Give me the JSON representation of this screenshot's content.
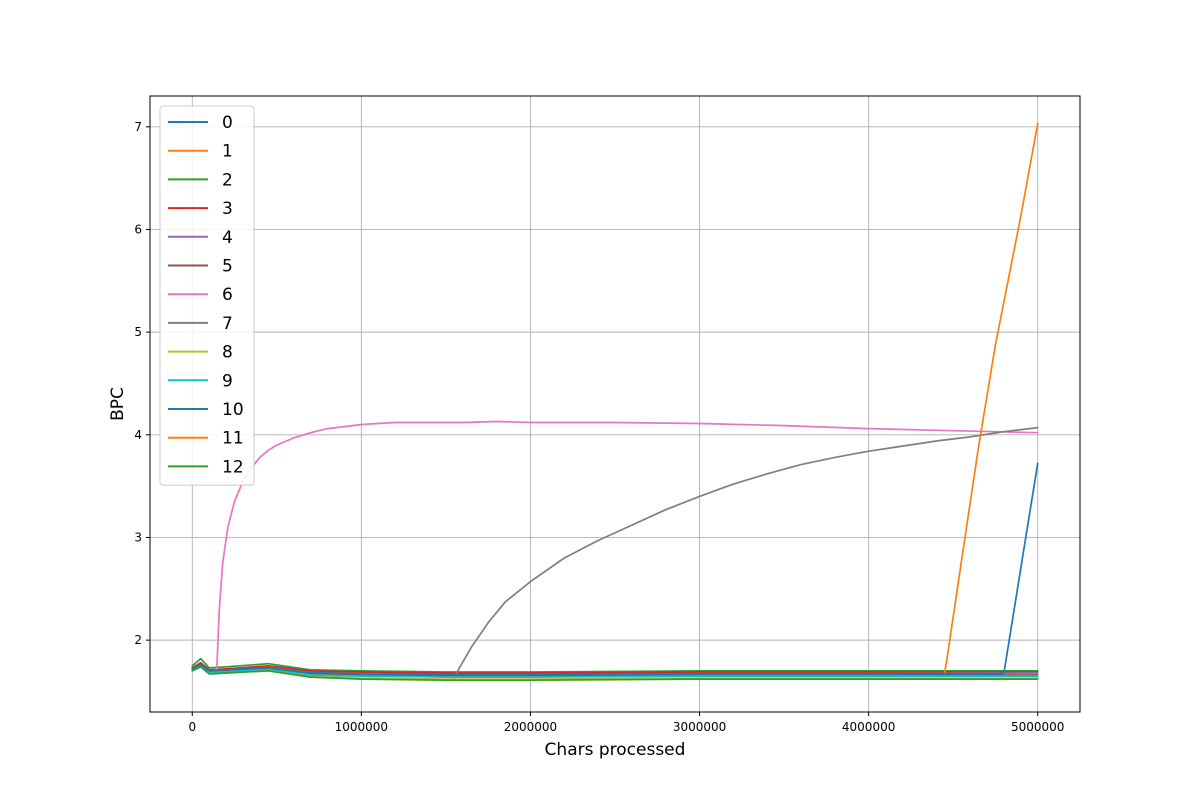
{
  "chart_data": {
    "type": "line",
    "title": "",
    "xlabel": "Chars processed",
    "ylabel": "BPC",
    "xlim": [
      -250000,
      5250000
    ],
    "ylim": [
      1.3,
      7.3
    ],
    "x_ticks": [
      0,
      1000000,
      2000000,
      3000000,
      4000000,
      5000000
    ],
    "x_tick_labels": [
      "0",
      "1000000",
      "2000000",
      "3000000",
      "4000000",
      "5000000"
    ],
    "y_ticks": [
      2,
      3,
      4,
      5,
      6,
      7
    ],
    "y_tick_labels": [
      "2",
      "3",
      "4",
      "5",
      "6",
      "7"
    ],
    "grid": true,
    "legend_position": "top-left",
    "series": [
      {
        "name": "0",
        "color": "#1f77b4",
        "points": [
          [
            0,
            1.72
          ],
          [
            50000,
            1.76
          ],
          [
            100000,
            1.7
          ],
          [
            200000,
            1.71
          ],
          [
            450000,
            1.74
          ],
          [
            700000,
            1.69
          ],
          [
            1000000,
            1.69
          ],
          [
            1500000,
            1.67
          ],
          [
            2000000,
            1.67
          ],
          [
            3000000,
            1.68
          ],
          [
            4000000,
            1.68
          ],
          [
            4450000,
            1.68
          ]
        ]
      },
      {
        "name": "1",
        "color": "#ff7f0e",
        "points": [
          [
            0,
            1.72
          ],
          [
            50000,
            1.77
          ],
          [
            100000,
            1.7
          ],
          [
            200000,
            1.72
          ],
          [
            450000,
            1.74
          ],
          [
            700000,
            1.7
          ],
          [
            1000000,
            1.69
          ],
          [
            1500000,
            1.68
          ],
          [
            2000000,
            1.68
          ],
          [
            3000000,
            1.69
          ],
          [
            4000000,
            1.69
          ],
          [
            4450000,
            1.69
          ]
        ]
      },
      {
        "name": "2",
        "color": "#2ca02c",
        "points": [
          [
            0,
            1.75
          ],
          [
            50000,
            1.82
          ],
          [
            100000,
            1.73
          ],
          [
            200000,
            1.74
          ],
          [
            450000,
            1.77
          ],
          [
            700000,
            1.71
          ],
          [
            1000000,
            1.7
          ],
          [
            1500000,
            1.69
          ],
          [
            2000000,
            1.69
          ],
          [
            3000000,
            1.7
          ],
          [
            4000000,
            1.7
          ],
          [
            5000000,
            1.7
          ]
        ]
      },
      {
        "name": "3",
        "color": "#d62728",
        "points": [
          [
            0,
            1.73
          ],
          [
            50000,
            1.78
          ],
          [
            100000,
            1.71
          ],
          [
            200000,
            1.72
          ],
          [
            450000,
            1.75
          ],
          [
            700000,
            1.7
          ],
          [
            1000000,
            1.69
          ],
          [
            1500000,
            1.68
          ],
          [
            2000000,
            1.68
          ],
          [
            3000000,
            1.69
          ],
          [
            4000000,
            1.69
          ],
          [
            5000000,
            1.69
          ]
        ]
      },
      {
        "name": "4",
        "color": "#9467bd",
        "points": [
          [
            0,
            1.72
          ],
          [
            50000,
            1.76
          ],
          [
            100000,
            1.7
          ],
          [
            200000,
            1.71
          ],
          [
            450000,
            1.73
          ],
          [
            700000,
            1.68
          ],
          [
            1000000,
            1.67
          ],
          [
            1500000,
            1.66
          ],
          [
            2000000,
            1.66
          ],
          [
            3000000,
            1.67
          ],
          [
            4000000,
            1.67
          ],
          [
            5000000,
            1.68
          ]
        ]
      },
      {
        "name": "5",
        "color": "#8c564b",
        "points": [
          [
            0,
            1.71
          ],
          [
            50000,
            1.75
          ],
          [
            100000,
            1.69
          ],
          [
            200000,
            1.7
          ],
          [
            450000,
            1.72
          ],
          [
            700000,
            1.67
          ],
          [
            1000000,
            1.66
          ],
          [
            1500000,
            1.65
          ],
          [
            2000000,
            1.65
          ],
          [
            3000000,
            1.66
          ],
          [
            4000000,
            1.66
          ],
          [
            5000000,
            1.66
          ]
        ]
      },
      {
        "name": "6",
        "color": "#e377c2",
        "points": [
          [
            0,
            1.72
          ],
          [
            50000,
            1.75
          ],
          [
            100000,
            1.7
          ],
          [
            130000,
            1.69
          ],
          [
            145000,
            1.72
          ],
          [
            160000,
            2.3
          ],
          [
            180000,
            2.75
          ],
          [
            210000,
            3.1
          ],
          [
            250000,
            3.35
          ],
          [
            300000,
            3.55
          ],
          [
            350000,
            3.68
          ],
          [
            400000,
            3.78
          ],
          [
            450000,
            3.85
          ],
          [
            500000,
            3.9
          ],
          [
            600000,
            3.97
          ],
          [
            700000,
            4.02
          ],
          [
            800000,
            4.06
          ],
          [
            900000,
            4.08
          ],
          [
            1000000,
            4.1
          ],
          [
            1200000,
            4.12
          ],
          [
            1500000,
            4.12
          ],
          [
            1600000,
            4.12
          ],
          [
            1800000,
            4.13
          ],
          [
            2000000,
            4.12
          ],
          [
            2500000,
            4.12
          ],
          [
            3000000,
            4.11
          ],
          [
            3500000,
            4.09
          ],
          [
            4000000,
            4.06
          ],
          [
            4500000,
            4.04
          ],
          [
            5000000,
            4.02
          ]
        ]
      },
      {
        "name": "7",
        "color": "#7f7f7f",
        "points": [
          [
            1550000,
            1.63
          ],
          [
            1580000,
            1.73
          ],
          [
            1650000,
            1.93
          ],
          [
            1750000,
            2.17
          ],
          [
            1850000,
            2.37
          ],
          [
            2000000,
            2.57
          ],
          [
            2200000,
            2.8
          ],
          [
            2400000,
            2.97
          ],
          [
            2600000,
            3.12
          ],
          [
            2800000,
            3.27
          ],
          [
            3000000,
            3.4
          ],
          [
            3200000,
            3.52
          ],
          [
            3400000,
            3.62
          ],
          [
            3600000,
            3.71
          ],
          [
            3800000,
            3.78
          ],
          [
            4000000,
            3.84
          ],
          [
            4200000,
            3.89
          ],
          [
            4400000,
            3.94
          ],
          [
            4600000,
            3.98
          ],
          [
            4800000,
            4.03
          ],
          [
            5000000,
            4.07
          ]
        ]
      },
      {
        "name": "8",
        "color": "#bcbd22",
        "points": [
          [
            0,
            1.7
          ],
          [
            50000,
            1.74
          ],
          [
            100000,
            1.68
          ],
          [
            200000,
            1.68
          ],
          [
            450000,
            1.71
          ],
          [
            700000,
            1.65
          ],
          [
            1000000,
            1.63
          ],
          [
            1500000,
            1.62
          ],
          [
            2000000,
            1.62
          ],
          [
            3000000,
            1.63
          ],
          [
            4000000,
            1.63
          ],
          [
            5000000,
            1.63
          ]
        ]
      },
      {
        "name": "9",
        "color": "#17becf",
        "points": [
          [
            0,
            1.71
          ],
          [
            50000,
            1.75
          ],
          [
            100000,
            1.69
          ],
          [
            200000,
            1.69
          ],
          [
            450000,
            1.72
          ],
          [
            700000,
            1.66
          ],
          [
            1000000,
            1.65
          ],
          [
            1500000,
            1.64
          ],
          [
            2000000,
            1.64
          ],
          [
            3000000,
            1.65
          ],
          [
            4000000,
            1.65
          ],
          [
            5000000,
            1.65
          ]
        ]
      },
      {
        "name": "10",
        "color": "#1f77b4",
        "points": [
          [
            0,
            1.72
          ],
          [
            50000,
            1.76
          ],
          [
            100000,
            1.7
          ],
          [
            200000,
            1.71
          ],
          [
            450000,
            1.73
          ],
          [
            700000,
            1.68
          ],
          [
            1000000,
            1.67
          ],
          [
            1500000,
            1.66
          ],
          [
            2000000,
            1.66
          ],
          [
            3000000,
            1.67
          ],
          [
            4000000,
            1.67
          ],
          [
            4450000,
            1.67
          ],
          [
            4780000,
            1.67
          ],
          [
            4800000,
            1.68
          ],
          [
            5000000,
            3.72
          ]
        ]
      },
      {
        "name": "11",
        "color": "#ff7f0e",
        "points": [
          [
            4450000,
            1.69
          ],
          [
            4460000,
            1.78
          ],
          [
            4550000,
            2.78
          ],
          [
            4650000,
            3.88
          ],
          [
            4750000,
            4.88
          ],
          [
            4900000,
            6.13
          ],
          [
            5000000,
            7.03
          ]
        ]
      },
      {
        "name": "12",
        "color": "#2ca02c",
        "points": [
          [
            0,
            1.7
          ],
          [
            50000,
            1.74
          ],
          [
            100000,
            1.67
          ],
          [
            200000,
            1.68
          ],
          [
            450000,
            1.7
          ],
          [
            700000,
            1.64
          ],
          [
            1000000,
            1.62
          ],
          [
            1500000,
            1.61
          ],
          [
            2000000,
            1.61
          ],
          [
            3000000,
            1.62
          ],
          [
            4000000,
            1.62
          ],
          [
            5000000,
            1.62
          ]
        ]
      }
    ]
  }
}
